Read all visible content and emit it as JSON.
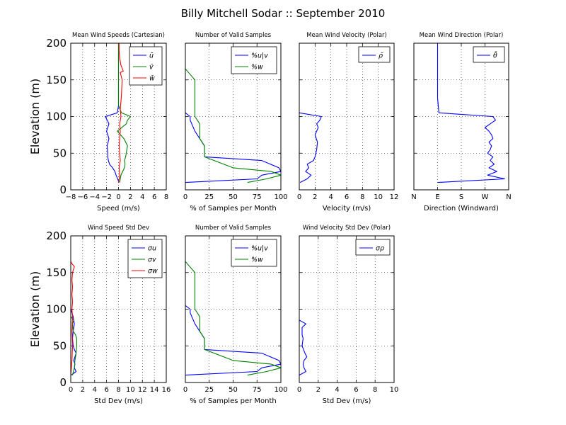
{
  "figure": {
    "title": "Billy Mitchell Sodar :: September 2010"
  },
  "colors": {
    "blue": "#0000ff",
    "green": "#008000",
    "red": "#ff0000"
  },
  "chart_data": [
    {
      "type": "line",
      "title": "Mean Wind Speeds (Cartesian)",
      "xlabel": "Speed (m/s)",
      "ylabel": "Elevation (m)",
      "xlim": [
        -8,
        8
      ],
      "ylim": [
        0,
        200
      ],
      "xticks": [
        "−8",
        "−6",
        "−4",
        "−2",
        "0",
        "2",
        "4",
        "6",
        "8"
      ],
      "yticks": [
        "0",
        "50",
        "100",
        "150",
        "200"
      ],
      "grid": true,
      "legend": "top-right",
      "series": [
        {
          "name": "ū",
          "color": "#0000ff",
          "x": [
            0.1,
            -0.4,
            -0.6,
            -1.0,
            -1.5,
            -1.7,
            -1.8,
            -1.8,
            -1.9,
            -1.6,
            -2.0,
            -1.6,
            -2.2,
            -0.2,
            0.0,
            0.0,
            0.0,
            0.0,
            0.0,
            0.0,
            0.0
          ],
          "y": [
            10,
            20,
            25,
            30,
            35,
            40,
            45,
            50,
            60,
            70,
            80,
            90,
            100,
            105,
            115,
            125,
            140,
            155,
            170,
            185,
            200
          ]
        },
        {
          "name": "v̄",
          "color": "#008000",
          "x": [
            0.2,
            0.4,
            0.7,
            1.0,
            1.1,
            1.0,
            1.2,
            1.5,
            0.9,
            -0.2,
            1.3,
            1.5,
            2.0,
            0.5,
            0.0,
            0.0,
            0.0,
            0.0,
            0.0,
            0.0,
            0.0
          ],
          "y": [
            10,
            20,
            25,
            30,
            35,
            40,
            45,
            60,
            70,
            80,
            90,
            95,
            100,
            105,
            115,
            125,
            140,
            155,
            170,
            185,
            200
          ]
        },
        {
          "name": "w̄",
          "color": "#ff0000",
          "x": [
            0.0,
            0.2,
            0.1,
            0.3,
            0.2,
            0.1,
            0.2,
            0.3,
            0.2,
            0.4,
            0.3,
            0.4,
            0.5,
            0.6,
            0.3,
            0.8,
            0.4,
            0.2,
            0.1,
            0.1
          ],
          "y": [
            10,
            20,
            30,
            40,
            50,
            60,
            70,
            80,
            90,
            100,
            110,
            120,
            130,
            150,
            160,
            162,
            170,
            180,
            190,
            200
          ]
        }
      ]
    },
    {
      "type": "line",
      "title": "Number of Valid Samples",
      "xlabel": "% of Samples per Month",
      "ylabel": "",
      "xlim": [
        0,
        100
      ],
      "ylim": [
        0,
        200
      ],
      "xticks": [
        "0",
        "25",
        "50",
        "75",
        "100"
      ],
      "yticks": [],
      "grid": true,
      "legend": "top-right",
      "series": [
        {
          "name": "%u|v",
          "color": "#0000ff",
          "x": [
            0,
            75,
            80,
            100,
            98,
            80,
            20,
            20,
            10,
            5,
            5,
            0
          ],
          "y": [
            10,
            15,
            20,
            25,
            30,
            40,
            45,
            60,
            80,
            95,
            100,
            105
          ]
        },
        {
          "name": "%w",
          "color": "#008000",
          "x": [
            65,
            85,
            100,
            90,
            50,
            20,
            20,
            15,
            15,
            10,
            10,
            0
          ],
          "y": [
            10,
            15,
            20,
            25,
            30,
            45,
            60,
            70,
            90,
            100,
            150,
            165
          ]
        }
      ]
    },
    {
      "type": "line",
      "title": "Mean Wind Velocity (Polar)",
      "xlabel": "Velocity (m/s)",
      "ylabel": "",
      "xlim": [
        0,
        12
      ],
      "ylim": [
        0,
        200
      ],
      "xticks": [
        "0",
        "2",
        "4",
        "6",
        "8",
        "10",
        "12"
      ],
      "yticks": [],
      "grid": true,
      "legend": "top-right",
      "series": [
        {
          "name": "ρ̄",
          "color": "#0000ff",
          "x": [
            0.1,
            1.0,
            1.5,
            0.8,
            1.2,
            1.0,
            1.8,
            2.0,
            2.2,
            2.3,
            2.0,
            2.4,
            2.2,
            2.6,
            2.8,
            0.0
          ],
          "y": [
            10,
            15,
            20,
            25,
            30,
            35,
            40,
            45,
            55,
            65,
            75,
            85,
            90,
            95,
            100,
            105
          ]
        }
      ]
    },
    {
      "type": "line",
      "title": "Mean Wind Direction (Polar)",
      "xlabel": "Direction (Windward)",
      "ylabel": "",
      "xlim": [
        0,
        360
      ],
      "ylim": [
        0,
        200
      ],
      "xticks": [
        "N",
        "E",
        "S",
        "W",
        "N"
      ],
      "yticks": [],
      "grid": true,
      "legend": "top-right",
      "series": [
        {
          "name": "θ̄",
          "color": "#0000ff",
          "x": [
            90,
            345,
            280,
            315,
            285,
            305,
            290,
            300,
            280,
            290,
            295,
            285,
            300,
            295,
            285,
            270,
            290,
            310,
            300,
            95,
            90,
            90,
            90,
            90
          ],
          "y": [
            10,
            15,
            20,
            25,
            30,
            35,
            40,
            45,
            50,
            55,
            60,
            65,
            70,
            75,
            80,
            85,
            90,
            95,
            100,
            105,
            125,
            150,
            175,
            200
          ]
        }
      ]
    },
    {
      "type": "line",
      "title": "Wind Speed Std Dev",
      "xlabel": "Std Dev (m/s)",
      "ylabel": "Elevation (m)",
      "xlim": [
        0,
        16
      ],
      "ylim": [
        0,
        200
      ],
      "xticks": [
        "0",
        "2",
        "4",
        "6",
        "8",
        "10",
        "12",
        "14",
        "16"
      ],
      "yticks": [
        "0",
        "50",
        "100",
        "150",
        "200"
      ],
      "grid": true,
      "legend": "top-right",
      "series": [
        {
          "name": "σu",
          "color": "#0000ff",
          "x": [
            0.1,
            0.9,
            0.6,
            0.7,
            0.5,
            0.9,
            0.6,
            0.4,
            0.3,
            0.4,
            0.6,
            0.5,
            0.4,
            0.0
          ],
          "y": [
            10,
            15,
            20,
            25,
            30,
            40,
            45,
            50,
            60,
            70,
            80,
            85,
            90,
            100
          ]
        },
        {
          "name": "σv",
          "color": "#008000",
          "x": [
            0.3,
            0.6,
            0.7,
            0.9,
            1.0,
            1.0,
            0.8,
            0.4,
            0.3,
            0.5,
            0.0
          ],
          "y": [
            10,
            20,
            30,
            40,
            50,
            60,
            65,
            70,
            80,
            85,
            90
          ]
        },
        {
          "name": "σw",
          "color": "#ff0000",
          "x": [
            0.0,
            0.2,
            0.3,
            0.2,
            0.3,
            0.2,
            0.3,
            0.2,
            0.3,
            0.2,
            0.3,
            0.6,
            0.2,
            0.0
          ],
          "y": [
            10,
            30,
            50,
            70,
            90,
            100,
            110,
            120,
            130,
            140,
            150,
            158,
            162,
            165
          ]
        }
      ]
    },
    {
      "type": "line",
      "title": "Number of Valid Samples",
      "xlabel": "% of Samples per Month",
      "ylabel": "",
      "xlim": [
        0,
        100
      ],
      "ylim": [
        0,
        200
      ],
      "xticks": [
        "0",
        "25",
        "50",
        "75",
        "100"
      ],
      "yticks": [],
      "grid": true,
      "legend": "top-right",
      "series": [
        {
          "name": "%u|v",
          "color": "#0000ff",
          "x": [
            0,
            75,
            80,
            100,
            98,
            80,
            20,
            20,
            10,
            5,
            5,
            0
          ],
          "y": [
            10,
            15,
            20,
            25,
            30,
            40,
            45,
            60,
            80,
            95,
            100,
            105
          ]
        },
        {
          "name": "%w",
          "color": "#008000",
          "x": [
            65,
            85,
            100,
            90,
            50,
            20,
            20,
            15,
            15,
            10,
            10,
            0
          ],
          "y": [
            10,
            15,
            20,
            25,
            30,
            45,
            60,
            70,
            90,
            100,
            150,
            165
          ]
        }
      ]
    },
    {
      "type": "line",
      "title": "Wind Velocity Std Dev (Polar)",
      "xlabel": "Std Dev (m/s)",
      "ylabel": "",
      "xlim": [
        0,
        10
      ],
      "ylim": [
        0,
        200
      ],
      "xticks": [
        "0",
        "2",
        "4",
        "6",
        "8",
        "10"
      ],
      "yticks": [],
      "grid": true,
      "legend": "top-right",
      "series": [
        {
          "name": "σρ",
          "color": "#0000ff",
          "x": [
            0.0,
            0.7,
            0.5,
            0.4,
            0.5,
            0.8,
            0.6,
            0.3,
            0.4,
            0.3,
            0.3,
            0.7,
            0.0
          ],
          "y": [
            10,
            15,
            20,
            25,
            30,
            35,
            40,
            50,
            60,
            65,
            75,
            80,
            85
          ]
        }
      ]
    }
  ]
}
